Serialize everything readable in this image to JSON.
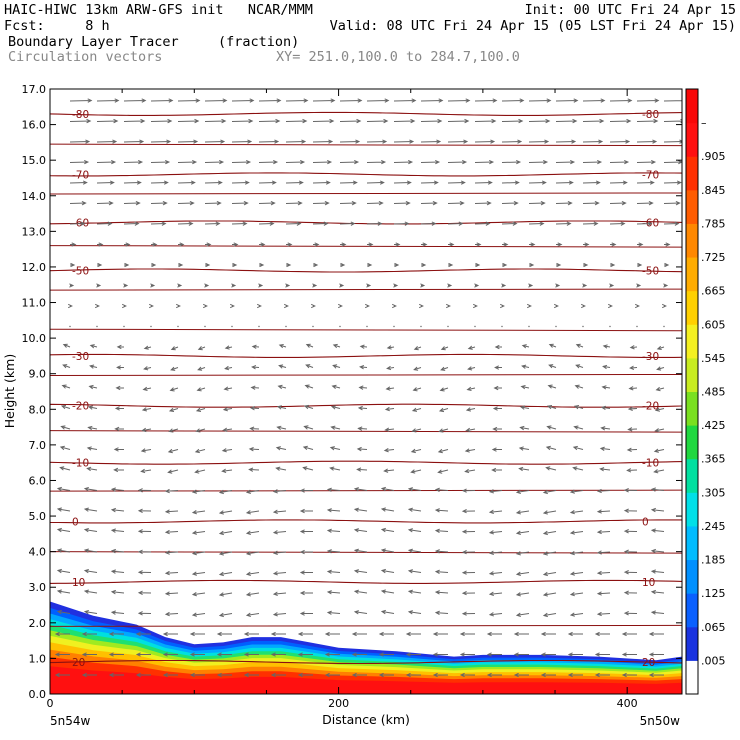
{
  "header": {
    "line1_left": "HAIC-HIWC 13km ARW-GFS init   NCAR/MMM",
    "line1_right": "Init: 00 UTC Fri 24 Apr 15",
    "line2_left": "Fcst:     8 h",
    "line2_right": "Valid: 08 UTC Fri 24 Apr 15 (05 LST Fri 24 Apr 15)",
    "line3_left": "Boundary Layer Tracer",
    "line3_units": "(fraction)",
    "line4_left": "Circulation vectors",
    "line4_xy": "XY= 251.0,100.0 to 284.7,100.0"
  },
  "chart_data": {
    "type": "heatmap",
    "title": "Boundary Layer Tracer",
    "units": "(fraction)",
    "xlabel": "Distance (km)",
    "ylabel": "Height (km)",
    "xlim": [
      0,
      438
    ],
    "ylim": [
      0,
      17
    ],
    "x_ticks": [
      0,
      200,
      400
    ],
    "y_ticks": [
      0.0,
      1.0,
      2.0,
      3.0,
      4.0,
      5.0,
      6.0,
      7.0,
      8.0,
      9.0,
      10.0,
      11.0,
      12.0,
      13.0,
      14.0,
      15.0,
      16.0,
      17.0
    ],
    "x_end_labels": {
      "left": "5n54w",
      "right": "5n50w"
    },
    "colorbar": {
      "labels": [
        ".005",
        ".065",
        ".125",
        ".185",
        ".245",
        ".305",
        ".365",
        ".425",
        ".485",
        ".545",
        ".605",
        ".665",
        ".725",
        ".785",
        ".845",
        ".905",
        "–"
      ],
      "colors": [
        "#ffffff",
        "#1a33e0",
        "#0a60ff",
        "#0090ff",
        "#00bcff",
        "#00e0e8",
        "#00e0a0",
        "#20d840",
        "#7ae020",
        "#c8ec20",
        "#f4f020",
        "#ffd000",
        "#ffac00",
        "#ff8800",
        "#ff5c00",
        "#ff3000",
        "#ff1010",
        "#f80808"
      ]
    },
    "tracer_top": {
      "x": [
        0,
        30,
        60,
        80,
        100,
        120,
        140,
        160,
        180,
        200,
        240,
        280,
        300,
        340,
        380,
        420,
        438
      ],
      "y": [
        2.6,
        2.2,
        1.95,
        1.6,
        1.4,
        1.45,
        1.6,
        1.6,
        1.45,
        1.3,
        1.2,
        1.05,
        1.1,
        1.1,
        1.05,
        0.95,
        1.05
      ]
    },
    "temperature_contours": [
      {
        "label": "-80",
        "height": 16.3
      },
      {
        "label": "-70",
        "height": 14.6
      },
      {
        "label": "-60",
        "height": 13.25
      },
      {
        "label": "-50",
        "height": 11.9
      },
      {
        "label": "-30",
        "height": 9.5
      },
      {
        "label": "-20",
        "height": 8.1
      },
      {
        "label": "-10",
        "height": 6.5
      },
      {
        "label": "0",
        "height": 4.85
      },
      {
        "label": "10",
        "height": 3.15
      },
      {
        "label": "20",
        "height": 0.9
      }
    ]
  }
}
